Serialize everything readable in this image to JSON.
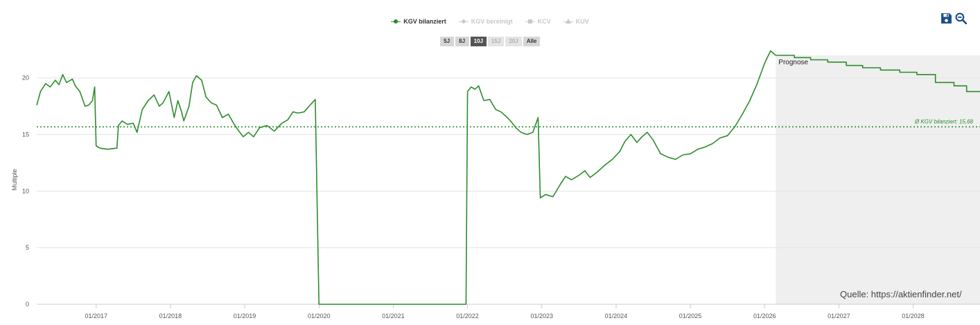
{
  "legend": {
    "items": [
      {
        "label": "KGV bilanziert",
        "marker": "circle",
        "color": "#2b8c2b",
        "active": true
      },
      {
        "label": "KGV bereinigt",
        "marker": "diamond",
        "color": "#c8c8c8",
        "active": false
      },
      {
        "label": "KCV",
        "marker": "square",
        "color": "#c8c8c8",
        "active": false
      },
      {
        "label": "KUV",
        "marker": "triangle",
        "color": "#c8c8c8",
        "active": false
      }
    ]
  },
  "range_buttons": [
    {
      "label": "5J",
      "state": "normal"
    },
    {
      "label": "8J",
      "state": "normal"
    },
    {
      "label": "10J",
      "state": "active"
    },
    {
      "label": "15J",
      "state": "disabled"
    },
    {
      "label": "20J",
      "state": "disabled"
    },
    {
      "label": "Alle",
      "state": "normal"
    }
  ],
  "toolbar": {
    "save_icon": "save-icon",
    "zoom_out_icon": "zoom-out-icon",
    "icon_color": "#1a4f8a"
  },
  "source_text": "Quelle: https://aktienfinder.net/",
  "chart_data": {
    "type": "line",
    "title": "",
    "ylabel": "Multiple",
    "xlabel": "",
    "ylim": [
      0,
      22
    ],
    "yticks": [
      0,
      5,
      10,
      15,
      20
    ],
    "xlim": [
      2016.2,
      2028.9
    ],
    "xticks": [
      {
        "x": 2017.0,
        "label": "01/2017"
      },
      {
        "x": 2018.0,
        "label": "01/2018"
      },
      {
        "x": 2019.0,
        "label": "01/2019"
      },
      {
        "x": 2020.0,
        "label": "01/2020"
      },
      {
        "x": 2021.0,
        "label": "01/2021"
      },
      {
        "x": 2022.0,
        "label": "01/2022"
      },
      {
        "x": 2023.0,
        "label": "01/2023"
      },
      {
        "x": 2024.0,
        "label": "01/2024"
      },
      {
        "x": 2025.0,
        "label": "01/2025"
      },
      {
        "x": 2026.0,
        "label": "01/2026"
      },
      {
        "x": 2027.0,
        "label": "01/2027"
      },
      {
        "x": 2028.0,
        "label": "01/2028"
      }
    ],
    "grid": true,
    "forecast": {
      "label": "Prognose",
      "from": 2026.15,
      "shade": "#efefef"
    },
    "average": {
      "label": "Ø KGV bilanziert: 15,68",
      "value": 15.68,
      "color": "#2b8c2b"
    },
    "series": [
      {
        "name": "KGV bilanziert",
        "color": "#2b8c2b",
        "points": [
          [
            2016.2,
            17.6
          ],
          [
            2016.25,
            18.8
          ],
          [
            2016.32,
            19.5
          ],
          [
            2016.38,
            19.2
          ],
          [
            2016.45,
            19.8
          ],
          [
            2016.5,
            19.4
          ],
          [
            2016.55,
            20.3
          ],
          [
            2016.6,
            19.6
          ],
          [
            2016.68,
            19.9
          ],
          [
            2016.72,
            19.3
          ],
          [
            2016.78,
            18.8
          ],
          [
            2016.85,
            17.5
          ],
          [
            2016.9,
            17.6
          ],
          [
            2016.95,
            18.0
          ],
          [
            2016.98,
            19.2
          ],
          [
            2017.0,
            14.0
          ],
          [
            2017.05,
            13.8
          ],
          [
            2017.15,
            13.7
          ],
          [
            2017.28,
            13.8
          ],
          [
            2017.3,
            15.8
          ],
          [
            2017.35,
            16.2
          ],
          [
            2017.42,
            15.9
          ],
          [
            2017.5,
            16.0
          ],
          [
            2017.55,
            15.2
          ],
          [
            2017.62,
            17.2
          ],
          [
            2017.7,
            18.0
          ],
          [
            2017.78,
            18.5
          ],
          [
            2017.85,
            17.5
          ],
          [
            2017.9,
            17.8
          ],
          [
            2017.98,
            18.8
          ],
          [
            2018.05,
            16.5
          ],
          [
            2018.1,
            18.0
          ],
          [
            2018.15,
            17.0
          ],
          [
            2018.18,
            16.2
          ],
          [
            2018.25,
            17.5
          ],
          [
            2018.3,
            19.6
          ],
          [
            2018.35,
            20.2
          ],
          [
            2018.42,
            19.8
          ],
          [
            2018.48,
            18.3
          ],
          [
            2018.55,
            17.8
          ],
          [
            2018.62,
            17.6
          ],
          [
            2018.7,
            16.5
          ],
          [
            2018.78,
            16.8
          ],
          [
            2018.85,
            16.0
          ],
          [
            2018.9,
            15.5
          ],
          [
            2018.98,
            14.8
          ],
          [
            2019.05,
            15.2
          ],
          [
            2019.12,
            14.8
          ],
          [
            2019.2,
            15.6
          ],
          [
            2019.3,
            15.8
          ],
          [
            2019.4,
            15.3
          ],
          [
            2019.5,
            16.0
          ],
          [
            2019.58,
            16.3
          ],
          [
            2019.65,
            17.0
          ],
          [
            2019.72,
            16.9
          ],
          [
            2019.8,
            17.0
          ],
          [
            2019.88,
            17.6
          ],
          [
            2019.95,
            18.1
          ],
          [
            2020.0,
            0.0
          ],
          [
            2021.98,
            0.0
          ],
          [
            2022.0,
            18.8
          ],
          [
            2022.05,
            19.2
          ],
          [
            2022.1,
            19.0
          ],
          [
            2022.15,
            19.3
          ],
          [
            2022.22,
            18.0
          ],
          [
            2022.3,
            18.1
          ],
          [
            2022.38,
            17.2
          ],
          [
            2022.45,
            17.0
          ],
          [
            2022.52,
            16.6
          ],
          [
            2022.58,
            16.2
          ],
          [
            2022.65,
            15.6
          ],
          [
            2022.72,
            15.2
          ],
          [
            2022.8,
            15.0
          ],
          [
            2022.88,
            15.2
          ],
          [
            2022.95,
            16.5
          ],
          [
            2022.98,
            9.4
          ],
          [
            2023.05,
            9.7
          ],
          [
            2023.15,
            9.5
          ],
          [
            2023.25,
            10.6
          ],
          [
            2023.32,
            11.3
          ],
          [
            2023.4,
            11.0
          ],
          [
            2023.5,
            11.4
          ],
          [
            2023.58,
            11.8
          ],
          [
            2023.65,
            11.2
          ],
          [
            2023.75,
            11.7
          ],
          [
            2023.85,
            12.3
          ],
          [
            2023.95,
            12.8
          ],
          [
            2024.05,
            13.5
          ],
          [
            2024.12,
            14.4
          ],
          [
            2024.2,
            15.0
          ],
          [
            2024.28,
            14.3
          ],
          [
            2024.35,
            14.8
          ],
          [
            2024.42,
            15.2
          ],
          [
            2024.5,
            14.5
          ],
          [
            2024.6,
            13.3
          ],
          [
            2024.7,
            13.0
          ],
          [
            2024.8,
            12.8
          ],
          [
            2024.9,
            13.2
          ],
          [
            2025.0,
            13.3
          ],
          [
            2025.1,
            13.7
          ],
          [
            2025.2,
            13.9
          ],
          [
            2025.3,
            14.2
          ],
          [
            2025.4,
            14.7
          ],
          [
            2025.5,
            14.9
          ],
          [
            2025.6,
            15.7
          ],
          [
            2025.7,
            16.8
          ],
          [
            2025.8,
            18.0
          ],
          [
            2025.9,
            19.5
          ],
          [
            2026.0,
            21.3
          ],
          [
            2026.08,
            22.4
          ],
          [
            2026.15,
            22.0
          ]
        ]
      },
      {
        "name": "Prognose",
        "color": "#2b8c2b",
        "step": true,
        "points": [
          [
            2026.15,
            22.0
          ],
          [
            2026.4,
            21.8
          ],
          [
            2026.62,
            21.6
          ],
          [
            2026.85,
            21.4
          ],
          [
            2027.1,
            21.1
          ],
          [
            2027.32,
            20.9
          ],
          [
            2027.56,
            20.7
          ],
          [
            2027.82,
            20.5
          ],
          [
            2028.05,
            20.3
          ],
          [
            2028.3,
            19.6
          ],
          [
            2028.55,
            19.3
          ],
          [
            2028.72,
            18.8
          ],
          [
            2028.9,
            18.8
          ]
        ]
      }
    ]
  }
}
